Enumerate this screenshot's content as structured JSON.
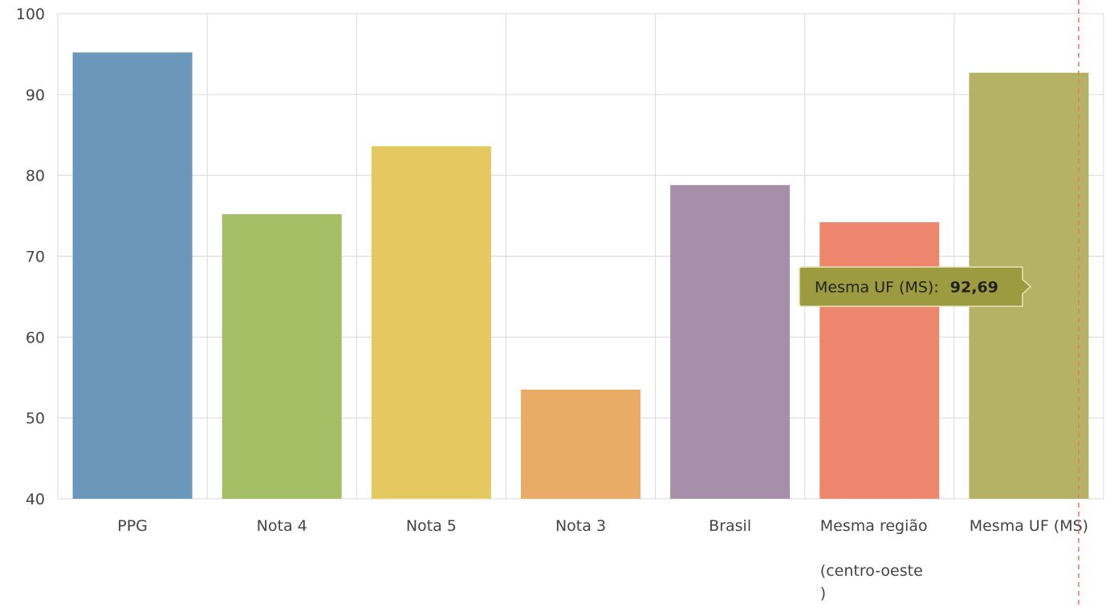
{
  "chart_data": {
    "type": "bar",
    "title": "",
    "xlabel": "",
    "ylabel": "",
    "ylim": [
      40,
      100
    ],
    "yticks": [
      40,
      50,
      60,
      70,
      80,
      90,
      100
    ],
    "grid": true,
    "categories": [
      [
        "PPG"
      ],
      [
        "Nota 4"
      ],
      [
        "Nota 5"
      ],
      [
        "Nota 3"
      ],
      [
        "Brasil"
      ],
      [
        "Mesma região",
        "",
        "(centro-oeste",
        ")"
      ],
      [
        "Mesma UF (MS)"
      ]
    ],
    "values": [
      95.2,
      75.2,
      83.6,
      53.5,
      78.8,
      74.2,
      92.69
    ],
    "colors": [
      "#6b97bb",
      "#a4bf66",
      "#e4c961",
      "#e8ac66",
      "#a68fa9",
      "#ec866c",
      "#b6b265"
    ],
    "tooltip": {
      "category_index": 6,
      "label": "Mesma UF (MS):",
      "value": "92,69",
      "color": "#9d9b3f"
    }
  }
}
